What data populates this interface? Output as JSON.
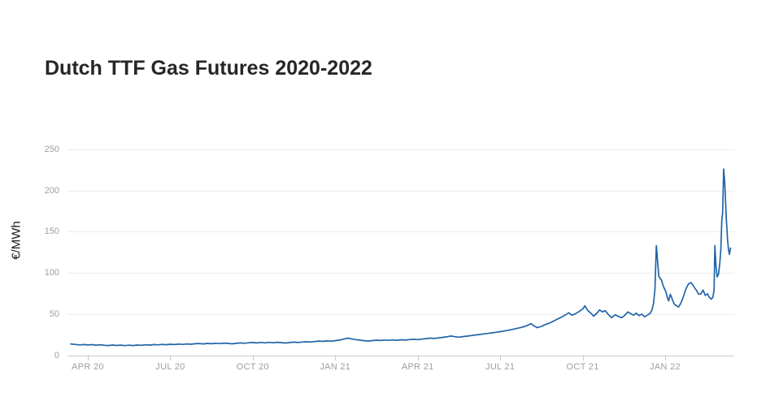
{
  "title": "Dutch TTF Gas Futures 2020-2022",
  "chart_data": {
    "type": "line",
    "title": "Dutch TTF Gas Futures 2020-2022",
    "xlabel": "",
    "ylabel": "€/MWh",
    "ylim": [
      0,
      250
    ],
    "y_ticks": [
      0,
      50,
      100,
      150,
      200,
      250
    ],
    "t_unit": "months since 2020-03-01",
    "x_ticks": [
      {
        "label": "APR 20",
        "t": 1
      },
      {
        "label": "JUL 20",
        "t": 4
      },
      {
        "label": "OCT 20",
        "t": 7
      },
      {
        "label": "JAN 21",
        "t": 10
      },
      {
        "label": "APR 21",
        "t": 13
      },
      {
        "label": "JUL 21",
        "t": 16
      },
      {
        "label": "OCT 21",
        "t": 19
      },
      {
        "label": "JAN 22",
        "t": 22
      }
    ],
    "grid": "horizontal",
    "legend": "none",
    "colors": {
      "line": "#2064a8",
      "grid": "#ececec",
      "axis": "#c9c9c9",
      "tick_label": "#9e9e9e",
      "title": "#262626",
      "axis_label": "#1a1a1a"
    },
    "points": [
      [
        0.38,
        13.6
      ],
      [
        0.55,
        13.0
      ],
      [
        0.7,
        12.5
      ],
      [
        0.85,
        12.9
      ],
      [
        1.0,
        12.4
      ],
      [
        1.15,
        12.8
      ],
      [
        1.3,
        12.2
      ],
      [
        1.45,
        12.6
      ],
      [
        1.6,
        12.0
      ],
      [
        1.75,
        11.7
      ],
      [
        1.9,
        12.3
      ],
      [
        2.05,
        11.8
      ],
      [
        2.2,
        12.2
      ],
      [
        2.35,
        11.6
      ],
      [
        2.5,
        12.1
      ],
      [
        2.65,
        11.7
      ],
      [
        2.8,
        12.3
      ],
      [
        2.95,
        12.0
      ],
      [
        3.1,
        12.6
      ],
      [
        3.25,
        12.2
      ],
      [
        3.4,
        12.9
      ],
      [
        3.55,
        12.5
      ],
      [
        3.7,
        13.1
      ],
      [
        3.85,
        12.7
      ],
      [
        4.0,
        13.3
      ],
      [
        4.15,
        12.9
      ],
      [
        4.3,
        13.5
      ],
      [
        4.45,
        13.1
      ],
      [
        4.6,
        13.7
      ],
      [
        4.75,
        13.3
      ],
      [
        4.9,
        13.9
      ],
      [
        5.05,
        14.2
      ],
      [
        5.2,
        13.7
      ],
      [
        5.35,
        14.3
      ],
      [
        5.5,
        13.9
      ],
      [
        5.65,
        14.5
      ],
      [
        5.8,
        14.1
      ],
      [
        5.95,
        14.7
      ],
      [
        6.1,
        14.3
      ],
      [
        6.25,
        13.8
      ],
      [
        6.4,
        14.4
      ],
      [
        6.55,
        14.9
      ],
      [
        6.7,
        14.5
      ],
      [
        6.85,
        15.1
      ],
      [
        7.0,
        15.4
      ],
      [
        7.15,
        14.9
      ],
      [
        7.3,
        15.5
      ],
      [
        7.45,
        15.0
      ],
      [
        7.6,
        15.6
      ],
      [
        7.75,
        15.1
      ],
      [
        7.9,
        15.7
      ],
      [
        8.05,
        15.2
      ],
      [
        8.2,
        14.8
      ],
      [
        8.35,
        15.4
      ],
      [
        8.5,
        15.9
      ],
      [
        8.65,
        15.4
      ],
      [
        8.8,
        16.0
      ],
      [
        8.95,
        16.4
      ],
      [
        9.1,
        16.0
      ],
      [
        9.25,
        16.6
      ],
      [
        9.4,
        17.1
      ],
      [
        9.55,
        16.7
      ],
      [
        9.7,
        17.3
      ],
      [
        9.85,
        17.0
      ],
      [
        10.0,
        17.6
      ],
      [
        10.15,
        18.3
      ],
      [
        10.3,
        19.4
      ],
      [
        10.45,
        20.7
      ],
      [
        10.6,
        19.8
      ],
      [
        10.75,
        18.9
      ],
      [
        10.9,
        18.2
      ],
      [
        11.05,
        17.6
      ],
      [
        11.2,
        17.1
      ],
      [
        11.35,
        17.7
      ],
      [
        11.5,
        18.2
      ],
      [
        11.65,
        17.8
      ],
      [
        11.8,
        18.4
      ],
      [
        11.95,
        18.0
      ],
      [
        12.1,
        18.5
      ],
      [
        12.25,
        18.1
      ],
      [
        12.4,
        18.7
      ],
      [
        12.55,
        18.3
      ],
      [
        12.7,
        18.9
      ],
      [
        12.85,
        19.3
      ],
      [
        13.0,
        18.9
      ],
      [
        13.15,
        19.5
      ],
      [
        13.3,
        20.1
      ],
      [
        13.45,
        20.7
      ],
      [
        13.6,
        20.3
      ],
      [
        13.75,
        21.0
      ],
      [
        13.9,
        21.6
      ],
      [
        14.05,
        22.3
      ],
      [
        14.2,
        23.3
      ],
      [
        14.35,
        22.5
      ],
      [
        14.5,
        21.9
      ],
      [
        14.65,
        22.6
      ],
      [
        14.8,
        23.2
      ],
      [
        14.95,
        23.8
      ],
      [
        15.1,
        24.5
      ],
      [
        15.25,
        25.1
      ],
      [
        15.4,
        25.8
      ],
      [
        15.55,
        26.4
      ],
      [
        15.7,
        27.1
      ],
      [
        15.85,
        27.8
      ],
      [
        16.0,
        28.6
      ],
      [
        16.15,
        29.4
      ],
      [
        16.3,
        30.3
      ],
      [
        16.45,
        31.3
      ],
      [
        16.6,
        32.4
      ],
      [
        16.75,
        33.6
      ],
      [
        16.9,
        35.0
      ],
      [
        17.0,
        36.3
      ],
      [
        17.12,
        38.3
      ],
      [
        17.25,
        35.2
      ],
      [
        17.35,
        33.4
      ],
      [
        17.5,
        35.0
      ],
      [
        17.65,
        37.2
      ],
      [
        17.8,
        39.0
      ],
      [
        17.95,
        41.5
      ],
      [
        18.1,
        44.0
      ],
      [
        18.25,
        46.5
      ],
      [
        18.4,
        49.5
      ],
      [
        18.5,
        51.5
      ],
      [
        18.6,
        48.5
      ],
      [
        18.72,
        50.0
      ],
      [
        18.85,
        52.5
      ],
      [
        19.0,
        56.0
      ],
      [
        19.08,
        60.0
      ],
      [
        19.18,
        54.5
      ],
      [
        19.28,
        51.5
      ],
      [
        19.4,
        47.5
      ],
      [
        19.52,
        51.0
      ],
      [
        19.62,
        55.0
      ],
      [
        19.72,
        52.5
      ],
      [
        19.82,
        54.0
      ],
      [
        19.92,
        50.0
      ],
      [
        20.05,
        45.5
      ],
      [
        20.18,
        49.0
      ],
      [
        20.3,
        47.0
      ],
      [
        20.42,
        45.5
      ],
      [
        20.52,
        48.0
      ],
      [
        20.64,
        52.5
      ],
      [
        20.75,
        50.5
      ],
      [
        20.85,
        48.5
      ],
      [
        20.95,
        51.0
      ],
      [
        21.05,
        48.0
      ],
      [
        21.15,
        50.0
      ],
      [
        21.25,
        46.5
      ],
      [
        21.35,
        48.5
      ],
      [
        21.45,
        50.5
      ],
      [
        21.52,
        55.0
      ],
      [
        21.58,
        63.0
      ],
      [
        21.63,
        80.0
      ],
      [
        21.68,
        133.0
      ],
      [
        21.73,
        112.0
      ],
      [
        21.77,
        96.0
      ],
      [
        21.82,
        93.0
      ],
      [
        21.87,
        91.0
      ],
      [
        21.92,
        85.0
      ],
      [
        21.97,
        81.0
      ],
      [
        22.03,
        77.0
      ],
      [
        22.08,
        70.0
      ],
      [
        22.13,
        66.0
      ],
      [
        22.19,
        74.0
      ],
      [
        22.26,
        68.0
      ],
      [
        22.33,
        62.0
      ],
      [
        22.41,
        60.0
      ],
      [
        22.49,
        58.5
      ],
      [
        22.57,
        63.0
      ],
      [
        22.66,
        70.5
      ],
      [
        22.75,
        80.0
      ],
      [
        22.85,
        86.5
      ],
      [
        22.95,
        88.0
      ],
      [
        23.05,
        83.0
      ],
      [
        23.14,
        78.5
      ],
      [
        23.22,
        74.0
      ],
      [
        23.3,
        74.5
      ],
      [
        23.38,
        79.0
      ],
      [
        23.46,
        72.5
      ],
      [
        23.54,
        74.5
      ],
      [
        23.61,
        70.0
      ],
      [
        23.68,
        68.0
      ],
      [
        23.74,
        70.5
      ],
      [
        23.78,
        79.0
      ],
      [
        23.81,
        133.0
      ],
      [
        23.85,
        108.0
      ],
      [
        23.89,
        95.0
      ],
      [
        23.94,
        98.0
      ],
      [
        23.99,
        112.0
      ],
      [
        24.03,
        130.0
      ],
      [
        24.06,
        164.0
      ],
      [
        24.09,
        172.0
      ],
      [
        24.13,
        226.0
      ],
      [
        24.17,
        208.0
      ],
      [
        24.22,
        168.0
      ],
      [
        24.27,
        140.0
      ],
      [
        24.31,
        127.0
      ],
      [
        24.34,
        122.5
      ],
      [
        24.38,
        130.0
      ]
    ]
  }
}
